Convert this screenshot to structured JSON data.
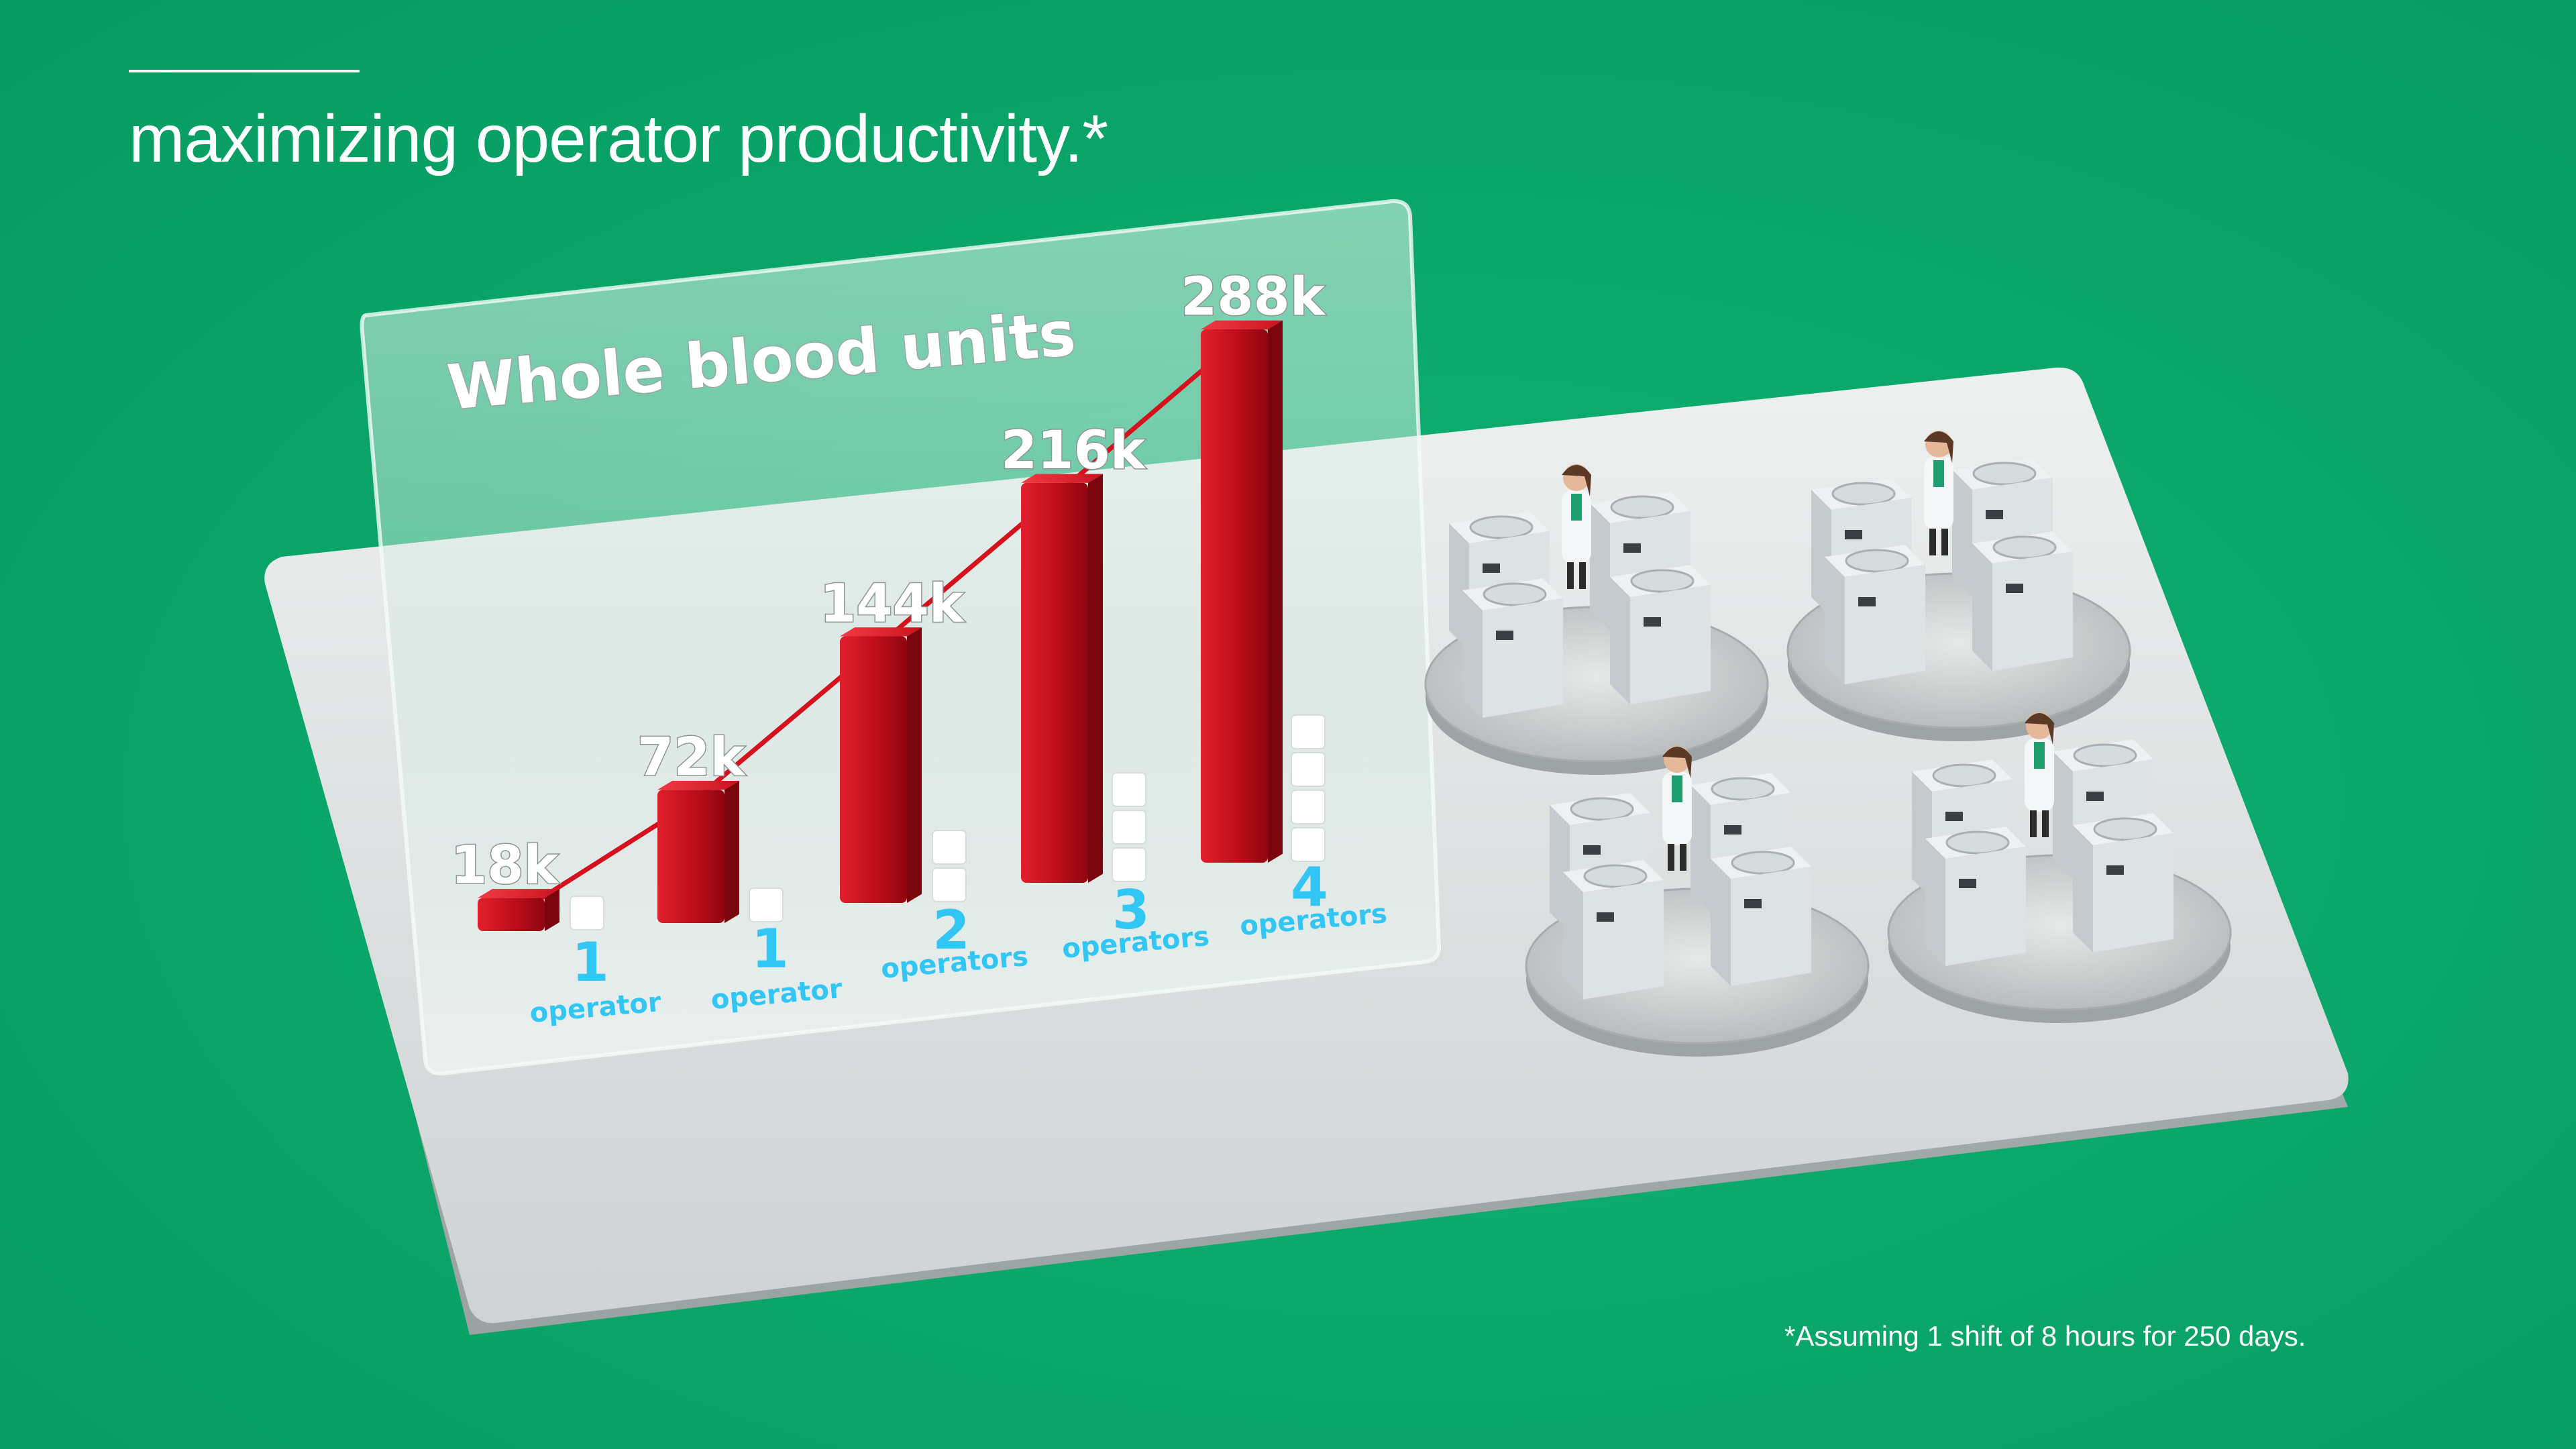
{
  "header": {
    "headline": "maximizing operator productivity.*"
  },
  "footnote": {
    "text": "*Assuming 1 shift of 8 hours for 250 days."
  },
  "colors": {
    "background": "#0aa569",
    "bar": "#c8101d",
    "category_text": "#31c6f3",
    "platform": "#d9dcdc"
  },
  "chart_data": {
    "type": "bar",
    "title": "Whole blood units",
    "categories_numbers": [
      "",
      "1",
      "1",
      "2",
      "3",
      "4"
    ],
    "categories_words": [
      "",
      "operator",
      "operator",
      "operators",
      "operators",
      "operators"
    ],
    "values": [
      18000,
      72000,
      144000,
      216000,
      288000
    ],
    "value_labels": [
      "18k",
      "72k",
      "144k",
      "216k",
      "288k"
    ],
    "operator_counts": [
      1,
      1,
      2,
      3,
      4
    ],
    "trend_line": true,
    "ylim": [
      0,
      288000
    ],
    "grid": false
  },
  "scene": {
    "machine_clusters": 4,
    "machines_per_cluster": 4,
    "operators_per_cluster": 1
  }
}
